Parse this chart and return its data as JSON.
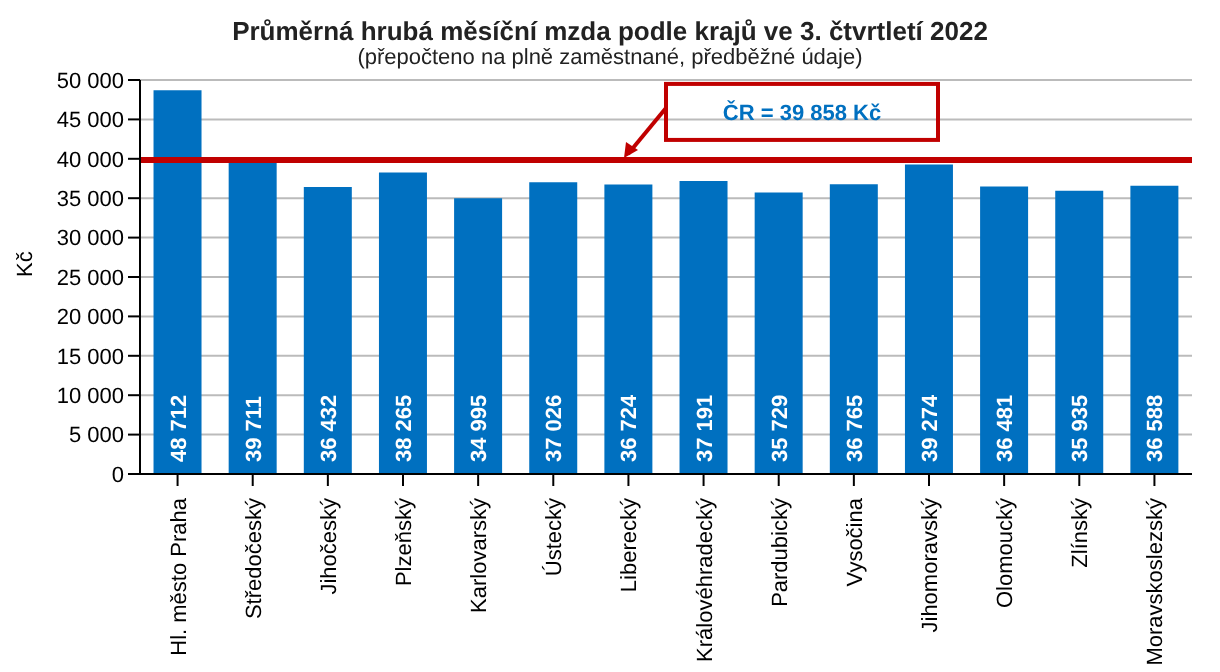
{
  "chart_data": {
    "type": "bar",
    "title": "Průměrná hrubá měsíční mzda podle krajů ve 3. čtvrtletí 2022",
    "subtitle": "(přepočteno na plně zaměstnané, předběžné údaje)",
    "ylabel": "Kč",
    "categories": [
      "Hl. město Praha",
      "Středočeský",
      "Jihočeský",
      "Plzeňský",
      "Karlovarský",
      "Ústecký",
      "Liberecký",
      "Královéhradecký",
      "Pardubický",
      "Vysočina",
      "Jihomoravský",
      "Olomoucký",
      "Zlínský",
      "Moravskoslezský"
    ],
    "values": [
      48712,
      39711,
      36432,
      38265,
      34995,
      37026,
      36724,
      37191,
      35729,
      36765,
      39274,
      36481,
      35935,
      36588
    ],
    "value_labels": [
      "48 712",
      "39 711",
      "36 432",
      "38 265",
      "34 995",
      "37 026",
      "36 724",
      "37 191",
      "35 729",
      "36 765",
      "39 274",
      "36 481",
      "35 935",
      "36 588"
    ],
    "color": "#0070c0",
    "ylim": [
      0,
      50000
    ],
    "yticks": [
      {
        "value": 0,
        "label": "0"
      },
      {
        "value": 5000,
        "label": "5 000"
      },
      {
        "value": 10000,
        "label": "10 000"
      },
      {
        "value": 15000,
        "label": "15 000"
      },
      {
        "value": 20000,
        "label": "20 000"
      },
      {
        "value": 25000,
        "label": "25 000"
      },
      {
        "value": 30000,
        "label": "30 000"
      },
      {
        "value": 35000,
        "label": "35 000"
      },
      {
        "value": 40000,
        "label": "40 000"
      },
      {
        "value": 45000,
        "label": "45 000"
      },
      {
        "value": 50000,
        "label": "50 000"
      }
    ],
    "ref_lines": [
      {
        "axis": "y",
        "value": 39858,
        "label": "ČR = 39 858 Kč",
        "color": "#c00000"
      }
    ],
    "grid": "y"
  }
}
